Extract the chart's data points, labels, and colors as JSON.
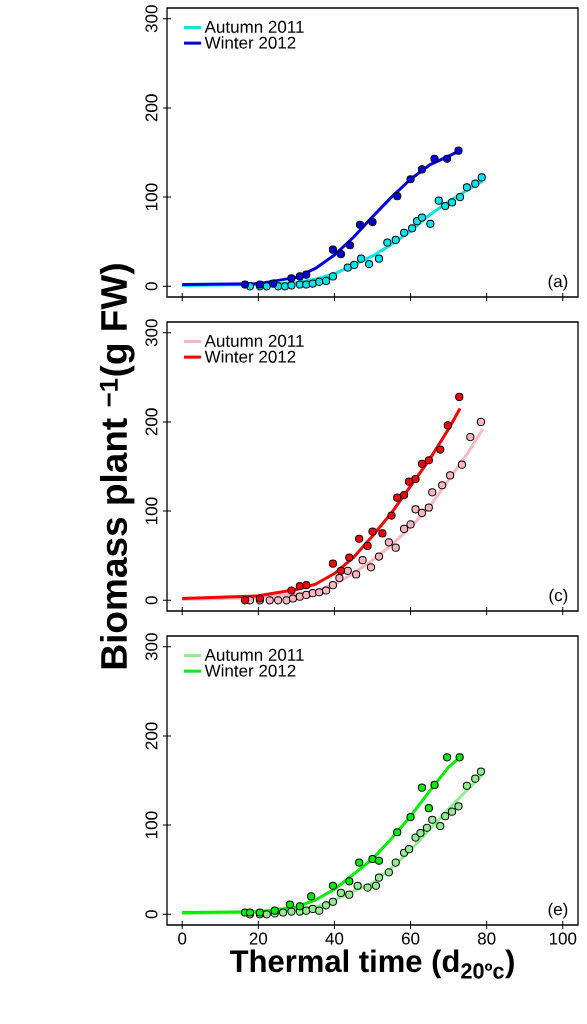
{
  "chart_data": [
    {
      "type": "line",
      "xlim": [
        -4,
        104
      ],
      "ylim": [
        -12,
        312
      ],
      "xticks": [
        0,
        20,
        40,
        60,
        80,
        100
      ],
      "yticks": [
        0,
        100,
        200,
        300
      ],
      "tick_labels": "y",
      "legend": "top left",
      "grid": false,
      "annotations": [
        "(a)"
      ],
      "series": [
        {
          "type": "scatter",
          "marker": "circle",
          "color": "#00e5ee",
          "x": [
            17.8,
            20.4,
            22.2,
            25.2,
            27,
            28.7,
            30.9,
            32.6,
            34.3,
            36,
            37.8,
            39.6,
            43.5,
            45.2,
            47,
            49.1,
            51.7,
            53.9,
            56.1,
            58.3,
            60.4,
            61.7,
            63,
            65.2,
            67.4,
            69.1,
            70.9,
            73,
            74.8,
            77,
            78.7
          ],
          "values": [
            0,
            0,
            0,
            0,
            0,
            1,
            2,
            2,
            3,
            5,
            6,
            11,
            21,
            24,
            31,
            25,
            31,
            49,
            52,
            60,
            65,
            73,
            77,
            70,
            96,
            90,
            94,
            100,
            111,
            115,
            122
          ]
        },
        {
          "type": "scatter",
          "marker": "circle",
          "color": "#0000dd",
          "x": [
            16.5,
            20.4,
            23.9,
            28.7,
            30.9,
            32.6,
            39.6,
            41.7,
            44.1,
            46.7,
            50,
            56.5,
            60,
            63,
            66.3,
            69.6,
            72.6
          ],
          "values": [
            2,
            2,
            3,
            9,
            11,
            13,
            41,
            36,
            46,
            69,
            72,
            101,
            120,
            131,
            143,
            143,
            152
          ]
        },
        {
          "name": "Autumn 2011",
          "color": "#00e5ee",
          "marker": "none",
          "x": [
            0,
            20,
            30,
            35,
            40,
            45,
            50,
            55,
            60,
            65,
            70,
            75,
            79
          ],
          "values": [
            1,
            2,
            4,
            8,
            14,
            24,
            34,
            47,
            62,
            80,
            95,
            108,
            118
          ]
        },
        {
          "name": "Winter 2012",
          "color": "#0000dd",
          "marker": "none",
          "x": [
            0,
            20,
            30,
            35,
            40,
            45,
            50,
            55,
            60,
            65,
            70,
            73
          ],
          "values": [
            2,
            3,
            10,
            20,
            35,
            55,
            78,
            100,
            120,
            136,
            146,
            152
          ]
        }
      ]
    },
    {
      "type": "line",
      "xlim": [
        -4,
        104
      ],
      "ylim": [
        -12,
        312
      ],
      "xticks": [
        0,
        20,
        40,
        60,
        80,
        100
      ],
      "yticks": [
        0,
        100,
        200,
        300
      ],
      "tick_labels": "y",
      "legend": "top left",
      "grid": false,
      "annotations": [
        "(c)"
      ],
      "ylabel": "Biomass plant $^{−1}$(g FW)",
      "series": [
        {
          "type": "scatter",
          "marker": "circle",
          "color": "#ffb6c1",
          "x": [
            17.8,
            20.4,
            23,
            25.2,
            27.4,
            29.1,
            30.9,
            32.6,
            34.3,
            36,
            37.8,
            39.6,
            41.3,
            43.5,
            45.7,
            47.4,
            49.6,
            51.7,
            54.3,
            56.1,
            58.3,
            60,
            61.3,
            63,
            64.8,
            65.7,
            68.3,
            70.4,
            73.5,
            75.7,
            78.5
          ],
          "values": [
            0,
            0,
            0,
            0,
            0,
            2,
            4,
            6,
            8,
            9,
            11,
            17,
            25,
            33,
            29,
            45,
            37,
            49,
            65,
            59,
            80,
            85,
            102,
            98,
            104,
            121,
            129,
            140,
            152,
            183,
            200
          ]
        },
        {
          "type": "scatter",
          "marker": "circle",
          "color": "#ff0000",
          "x": [
            16.5,
            20.4,
            28.7,
            30.9,
            32.6,
            39.6,
            41.7,
            43.9,
            46.5,
            48.7,
            50,
            52.6,
            55,
            56.5,
            58.3,
            59.6,
            61.3,
            63,
            64.8,
            67.8,
            69.8,
            72.8
          ],
          "values": [
            0,
            2,
            11,
            16,
            17,
            41,
            33,
            48,
            69,
            61,
            77,
            75,
            95,
            115,
            118,
            133,
            136,
            153,
            157,
            169,
            196,
            228
          ]
        },
        {
          "name": "Autumn 2011",
          "color": "#ffb6c1",
          "marker": "none",
          "x": [
            0,
            20,
            30,
            35,
            40,
            45,
            50,
            55,
            60,
            65,
            70,
            75,
            79
          ],
          "values": [
            1,
            3,
            7,
            10,
            18,
            30,
            45,
            62,
            82,
            105,
            135,
            165,
            192
          ]
        },
        {
          "name": "Winter 2012",
          "color": "#ff0000",
          "marker": "none",
          "x": [
            0,
            20,
            30,
            35,
            40,
            45,
            50,
            55,
            60,
            65,
            70,
            73
          ],
          "values": [
            2,
            5,
            12,
            18,
            30,
            48,
            72,
            98,
            128,
            158,
            192,
            215
          ]
        }
      ]
    },
    {
      "type": "line",
      "xlim": [
        -4,
        104
      ],
      "ylim": [
        -12,
        312
      ],
      "xticks": [
        0,
        20,
        40,
        60,
        80,
        100
      ],
      "yticks": [
        0,
        100,
        200,
        300
      ],
      "legend": "top left",
      "grid": false,
      "annotations": [
        "(e)"
      ],
      "xlabel": "Thermal time (d$_{20ºc}$)",
      "series": [
        {
          "type": "scatter",
          "marker": "circle",
          "color": "#90ee90",
          "x": [
            17.8,
            20.4,
            22.2,
            24.3,
            26.5,
            28.7,
            30.9,
            32.6,
            34.3,
            36,
            37.8,
            39.6,
            41.7,
            43.9,
            46.1,
            48.7,
            50.9,
            51.7,
            54.3,
            56.1,
            58.3,
            59.6,
            61.3,
            62.6,
            64.3,
            65.7,
            67.8,
            69.1,
            70.9,
            72.6,
            74.8,
            77,
            78.5
          ],
          "values": [
            0,
            0,
            0,
            1,
            2,
            3,
            3,
            4,
            6,
            4,
            10,
            14,
            24,
            22,
            32,
            30,
            32,
            41,
            47,
            58,
            69,
            73,
            86,
            91,
            97,
            106,
            99,
            110,
            115,
            121,
            144,
            152,
            160
          ]
        },
        {
          "type": "scatter",
          "marker": "circle",
          "color": "#00ee00",
          "x": [
            16.5,
            17.8,
            20.4,
            24.3,
            28.3,
            30.9,
            33.9,
            39.6,
            43.9,
            46.5,
            50,
            51.7,
            56.5,
            60,
            63,
            64.8,
            66.3,
            69.6,
            72.9
          ],
          "values": [
            2,
            2,
            2,
            4,
            11,
            9,
            20,
            32,
            37,
            58,
            62,
            60,
            92,
            109,
            142,
            119,
            145,
            176,
            176
          ]
        },
        {
          "name": "Autumn 2011",
          "color": "#90ee90",
          "marker": "none",
          "x": [
            0,
            20,
            30,
            35,
            40,
            45,
            50,
            55,
            60,
            65,
            70,
            75,
            79
          ],
          "values": [
            1,
            2,
            5,
            8,
            16,
            26,
            35,
            52,
            72,
            95,
            118,
            140,
            157
          ]
        },
        {
          "name": "Winter 2012",
          "color": "#00ee00",
          "marker": "none",
          "x": [
            0,
            20,
            30,
            35,
            40,
            45,
            50,
            55,
            60,
            65,
            70,
            73
          ],
          "values": [
            2,
            3,
            8,
            16,
            28,
            45,
            62,
            85,
            110,
            138,
            165,
            176
          ]
        }
      ]
    }
  ]
}
